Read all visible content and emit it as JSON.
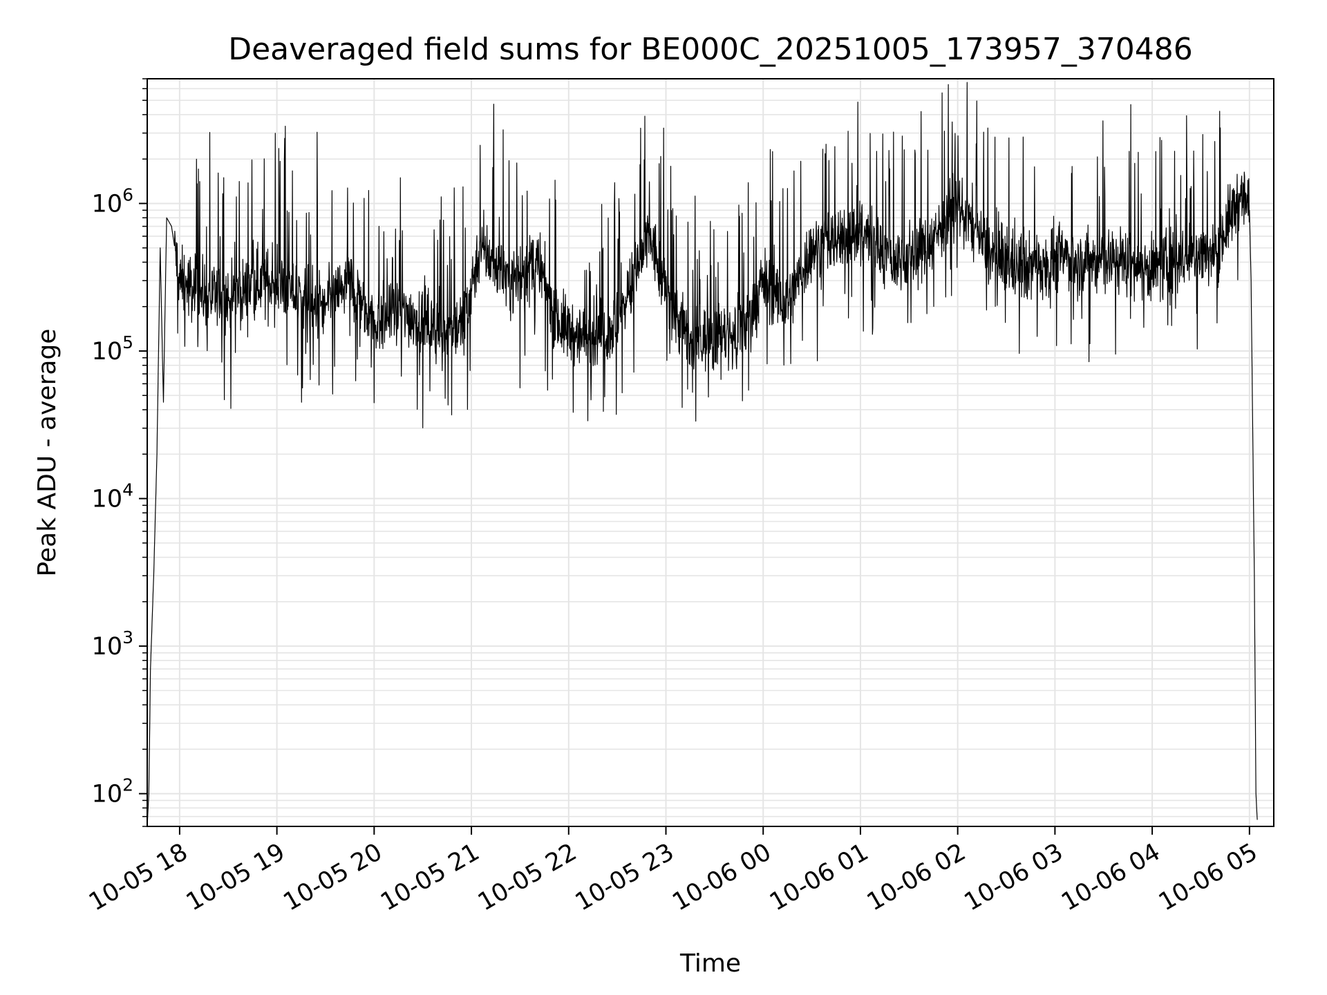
{
  "chart_data": {
    "type": "line",
    "title": "Deaveraged field sums for BE000C_20251005_173957_370486",
    "xlabel": "Time",
    "ylabel": "Peak ADU - average",
    "yscale": "log",
    "ylim": [
      60,
      7000000
    ],
    "xlim": [
      "10-05 17:40",
      "10-06 05:15"
    ],
    "grid": true,
    "line_color": "#000000",
    "grid_color": "#e5e5e5",
    "x_ticks": [
      {
        "value": "10-05 18:00",
        "label": "10-05 18"
      },
      {
        "value": "10-05 19:00",
        "label": "10-05 19"
      },
      {
        "value": "10-05 20:00",
        "label": "10-05 20"
      },
      {
        "value": "10-05 21:00",
        "label": "10-05 21"
      },
      {
        "value": "10-05 22:00",
        "label": "10-05 22"
      },
      {
        "value": "10-05 23:00",
        "label": "10-05 23"
      },
      {
        "value": "10-06 00:00",
        "label": "10-06 00"
      },
      {
        "value": "10-06 01:00",
        "label": "10-06 01"
      },
      {
        "value": "10-06 02:00",
        "label": "10-06 02"
      },
      {
        "value": "10-06 03:00",
        "label": "10-06 03"
      },
      {
        "value": "10-06 04:00",
        "label": "10-06 04"
      },
      {
        "value": "10-06 05:00",
        "label": "10-06 05"
      }
    ],
    "y_ticks": [
      {
        "value": 100,
        "base": "10",
        "exp": "2"
      },
      {
        "value": 1000,
        "base": "10",
        "exp": "3"
      },
      {
        "value": 10000,
        "base": "10",
        "exp": "4"
      },
      {
        "value": 100000,
        "base": "10",
        "exp": "5"
      },
      {
        "value": 1000000,
        "base": "10",
        "exp": "6"
      }
    ],
    "x": [
      "10-05 17:40",
      "10-05 17:41",
      "10-05 17:42",
      "10-05 17:44",
      "10-05 17:46",
      "10-05 17:48",
      "10-05 17:50",
      "10-05 17:52",
      "10-05 17:55",
      "10-05 17:57",
      "10-05 18:00",
      "10-05 18:10",
      "10-05 18:30",
      "10-05 18:50",
      "10-05 19:10",
      "10-05 19:30",
      "10-05 19:45",
      "10-05 20:00",
      "10-05 20:20",
      "10-05 20:40",
      "10-05 20:55",
      "10-05 21:05",
      "10-05 21:25",
      "10-05 21:40",
      "10-05 21:55",
      "10-05 22:10",
      "10-05 22:30",
      "10-05 22:50",
      "10-05 23:00",
      "10-05 23:15",
      "10-05 23:30",
      "10-05 23:45",
      "10-06 00:00",
      "10-06 00:15",
      "10-06 00:30",
      "10-06 00:45",
      "10-06 01:00",
      "10-06 01:20",
      "10-06 01:40",
      "10-06 02:00",
      "10-06 02:20",
      "10-06 02:40",
      "10-06 03:00",
      "10-06 03:20",
      "10-06 03:40",
      "10-06 04:00",
      "10-06 04:20",
      "10-06 04:40",
      "10-06 04:55",
      "10-06 05:00",
      "10-06 05:01",
      "10-06 05:03",
      "10-06 05:04",
      "10-06 05:05"
    ],
    "y": [
      60,
      100,
      700,
      3000,
      20000,
      500000,
      45000,
      800000,
      700000,
      500000,
      300000,
      250000,
      220000,
      300000,
      250000,
      200000,
      300000,
      160000,
      180000,
      140000,
      150000,
      500000,
      300000,
      400000,
      150000,
      120000,
      150000,
      600000,
      250000,
      110000,
      130000,
      120000,
      300000,
      200000,
      500000,
      550000,
      700000,
      400000,
      500000,
      1000000,
      450000,
      350000,
      450000,
      400000,
      420000,
      350000,
      420000,
      500000,
      1200000,
      900000,
      300000,
      3000,
      100,
      60
    ]
  }
}
